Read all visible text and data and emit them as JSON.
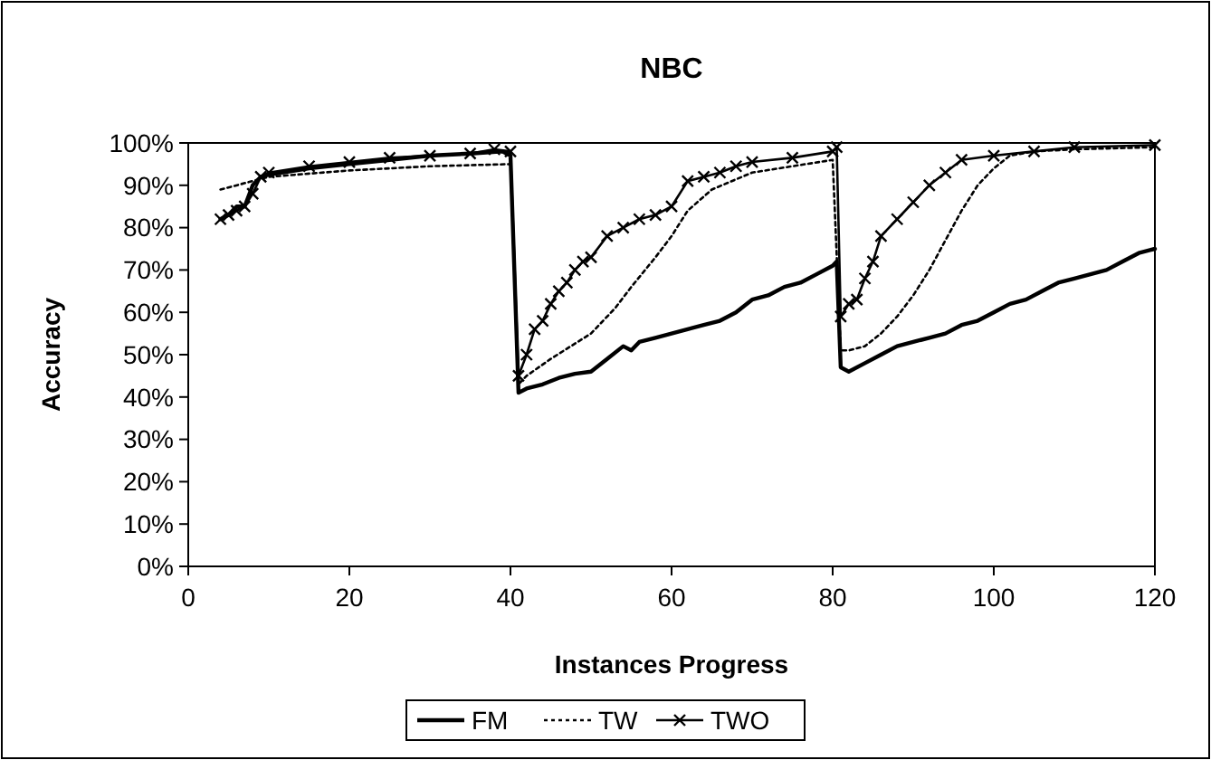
{
  "chart_data": {
    "type": "line",
    "title": "NBC",
    "xlabel": "Instances Progress",
    "ylabel": "Accuracy",
    "xlim": [
      0,
      120
    ],
    "xticks": [
      0,
      20,
      40,
      60,
      80,
      100,
      120
    ],
    "ylim": [
      0,
      1
    ],
    "yticks": [
      {
        "value": 0,
        "label": "0%"
      },
      {
        "value": 0.1,
        "label": "10%"
      },
      {
        "value": 0.2,
        "label": "20%"
      },
      {
        "value": 0.3,
        "label": "30%"
      },
      {
        "value": 0.4,
        "label": "40%"
      },
      {
        "value": 0.5,
        "label": "50%"
      },
      {
        "value": 0.6,
        "label": "60%"
      },
      {
        "value": 0.7,
        "label": "70%"
      },
      {
        "value": 0.8,
        "label": "80%"
      },
      {
        "value": 0.9,
        "label": "90%"
      },
      {
        "value": 1,
        "label": "100%"
      }
    ],
    "grid": false,
    "legend": "bottom",
    "series": [
      {
        "name": "FM",
        "color": "#000000",
        "line_style": "solid",
        "marker": "none",
        "x": [
          4,
          5,
          6,
          7,
          8,
          9,
          10,
          15,
          20,
          25,
          30,
          35,
          39,
          40,
          41,
          42,
          44,
          46,
          48,
          50,
          52,
          54,
          55,
          56,
          58,
          60,
          62,
          64,
          66,
          68,
          70,
          72,
          74,
          76,
          78,
          80,
          80.5,
          81,
          82,
          84,
          86,
          88,
          90,
          92,
          94,
          96,
          98,
          100,
          102,
          104,
          106,
          108,
          110,
          112,
          114,
          116,
          118,
          120
        ],
        "values": [
          0.82,
          0.83,
          0.85,
          0.85,
          0.9,
          0.92,
          0.925,
          0.94,
          0.95,
          0.96,
          0.97,
          0.975,
          0.98,
          0.97,
          0.41,
          0.42,
          0.43,
          0.445,
          0.455,
          0.46,
          0.49,
          0.52,
          0.51,
          0.53,
          0.54,
          0.55,
          0.56,
          0.57,
          0.58,
          0.6,
          0.63,
          0.64,
          0.66,
          0.67,
          0.69,
          0.71,
          0.72,
          0.47,
          0.46,
          0.48,
          0.5,
          0.52,
          0.53,
          0.54,
          0.55,
          0.57,
          0.58,
          0.6,
          0.62,
          0.63,
          0.65,
          0.67,
          0.68,
          0.69,
          0.7,
          0.72,
          0.74,
          0.75
        ]
      },
      {
        "name": "TW",
        "color": "#000000",
        "line_style": "dotted",
        "marker": "none",
        "x": [
          4,
          8,
          10,
          20,
          30,
          40,
          41,
          42,
          45,
          50,
          53,
          55,
          58,
          60,
          62,
          65,
          70,
          75,
          80,
          81,
          82,
          84,
          86,
          88,
          90,
          92,
          94,
          96,
          98,
          100,
          102,
          105,
          110,
          120
        ],
        "values": [
          0.89,
          0.91,
          0.92,
          0.935,
          0.945,
          0.95,
          0.43,
          0.45,
          0.49,
          0.55,
          0.61,
          0.66,
          0.73,
          0.78,
          0.84,
          0.89,
          0.93,
          0.945,
          0.96,
          0.51,
          0.51,
          0.52,
          0.55,
          0.59,
          0.64,
          0.7,
          0.77,
          0.84,
          0.9,
          0.94,
          0.97,
          0.98,
          0.985,
          0.99
        ]
      },
      {
        "name": "TWO",
        "color": "#000000",
        "line_style": "solid",
        "marker": "cross",
        "x": [
          4,
          5,
          6,
          7,
          8,
          9,
          10,
          15,
          20,
          25,
          30,
          35,
          38,
          40,
          41,
          42,
          43,
          44,
          45,
          46,
          47,
          48,
          49,
          50,
          52,
          54,
          56,
          58,
          60,
          62,
          64,
          66,
          68,
          70,
          75,
          80,
          80.5,
          81,
          82,
          83,
          84,
          85,
          86,
          88,
          90,
          92,
          94,
          96,
          100,
          105,
          110,
          120
        ],
        "values": [
          0.82,
          0.83,
          0.84,
          0.85,
          0.88,
          0.92,
          0.93,
          0.945,
          0.955,
          0.965,
          0.97,
          0.975,
          0.985,
          0.98,
          0.45,
          0.5,
          0.56,
          0.58,
          0.62,
          0.65,
          0.67,
          0.7,
          0.72,
          0.73,
          0.78,
          0.8,
          0.82,
          0.83,
          0.85,
          0.91,
          0.92,
          0.93,
          0.945,
          0.955,
          0.965,
          0.98,
          0.99,
          0.59,
          0.62,
          0.63,
          0.68,
          0.72,
          0.78,
          0.82,
          0.86,
          0.9,
          0.93,
          0.96,
          0.97,
          0.98,
          0.99,
          0.995
        ]
      }
    ]
  }
}
